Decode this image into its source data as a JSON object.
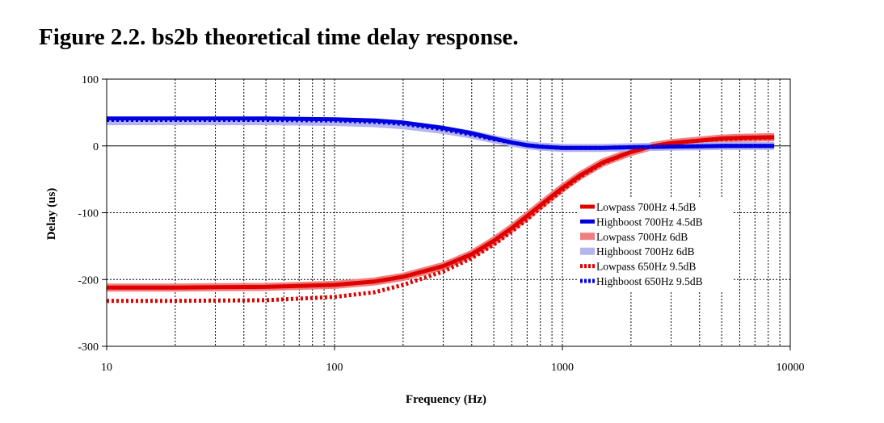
{
  "figure": {
    "title": "Figure 2.2. bs2b theoretical time delay response."
  },
  "chart_data": {
    "type": "line",
    "title": "",
    "xlabel": "Frequency (Hz)",
    "ylabel": "Delay (us)",
    "xscale": "log",
    "xlim": [
      10,
      10000
    ],
    "ylim": [
      -300,
      100
    ],
    "xticks": [
      10,
      100,
      1000,
      10000
    ],
    "xtick_labels": [
      "10",
      "100",
      "1000",
      "10000"
    ],
    "yticks": [
      -300,
      -200,
      -100,
      0,
      100
    ],
    "ytick_labels": [
      "-300",
      "-200",
      "-100",
      "0",
      "100"
    ],
    "grid": true,
    "legend_position": "right-center",
    "series": [
      {
        "name": "Lowpass 700Hz 6dB",
        "color": "#f08080",
        "style": "thick-solid",
        "x": [
          10,
          20,
          50,
          100,
          150,
          200,
          300,
          400,
          500,
          600,
          700,
          800,
          1000,
          1200,
          1500,
          2000,
          2500,
          3000,
          4000,
          5000,
          6000,
          8000,
          8500
        ],
        "y": [
          -212,
          -212,
          -211,
          -208,
          -203,
          -196,
          -180,
          -162,
          -142,
          -123,
          -105,
          -89,
          -63,
          -44,
          -25,
          -9,
          0,
          4,
          8,
          11,
          12,
          13,
          13
        ]
      },
      {
        "name": "Highboost 700Hz 6dB",
        "color": "#b4b4f0",
        "style": "thick-solid",
        "x": [
          10,
          20,
          50,
          100,
          150,
          200,
          300,
          400,
          500,
          600,
          700,
          800,
          1000,
          1200,
          1500,
          2000,
          3000,
          5000,
          8500
        ],
        "y": [
          37,
          37,
          37,
          36,
          34,
          31,
          24,
          17,
          10,
          5,
          1,
          -1,
          -3,
          -3,
          -3,
          -2,
          -1,
          0,
          0
        ]
      },
      {
        "name": "Lowpass 700Hz 4.5dB",
        "color": "#e00000",
        "style": "solid",
        "x": [
          10,
          20,
          50,
          100,
          150,
          200,
          300,
          400,
          500,
          600,
          700,
          800,
          1000,
          1200,
          1500,
          2000,
          2500,
          3000,
          4000,
          5000,
          6000,
          8000,
          8500
        ],
        "y": [
          -212,
          -212,
          -211,
          -208,
          -203,
          -196,
          -180,
          -162,
          -142,
          -123,
          -105,
          -89,
          -63,
          -44,
          -25,
          -9,
          0,
          4,
          8,
          11,
          12,
          13,
          13
        ]
      },
      {
        "name": "Highboost 700Hz 4.5dB",
        "color": "#0000e0",
        "style": "solid",
        "x": [
          10,
          20,
          50,
          100,
          150,
          200,
          300,
          400,
          500,
          600,
          700,
          800,
          1000,
          1200,
          1500,
          2000,
          3000,
          5000,
          8500
        ],
        "y": [
          41,
          41,
          41,
          40,
          38,
          35,
          27,
          19,
          11,
          5,
          1,
          -1,
          -3,
          -3,
          -3,
          -2,
          -1,
          0,
          0
        ]
      },
      {
        "name": "Lowpass 650Hz 9.5dB",
        "color": "#e00000",
        "style": "dotted",
        "x": [
          10,
          20,
          50,
          100,
          150,
          200,
          300,
          400,
          500,
          600,
          700,
          800,
          1000,
          1200,
          1500,
          2000,
          2500,
          3000,
          4000,
          5000,
          6000,
          8000,
          8500
        ],
        "y": [
          -232,
          -232,
          -231,
          -226,
          -219,
          -208,
          -188,
          -168,
          -148,
          -128,
          -110,
          -93,
          -66,
          -46,
          -26,
          -9,
          0,
          4,
          8,
          10,
          11,
          12,
          12
        ]
      },
      {
        "name": "Highboost 650Hz 9.5dB",
        "color": "#0000e0",
        "style": "dotted",
        "x": [
          10,
          20,
          50,
          100,
          150,
          200,
          300,
          400,
          500,
          600,
          700,
          800,
          1000,
          1200,
          1500,
          2000,
          3000,
          5000,
          8500
        ],
        "y": [
          39,
          39,
          39,
          38,
          36,
          33,
          25,
          17,
          10,
          5,
          1,
          -1,
          -3,
          -3,
          -3,
          -2,
          -1,
          0,
          0
        ]
      }
    ],
    "legend_order": [
      "Lowpass 700Hz 4.5dB",
      "Highboost 700Hz 4.5dB",
      "Lowpass 700Hz 6dB",
      "Highboost 700Hz 6dB",
      "Lowpass 650Hz 9.5dB",
      "Highboost 650Hz 9.5dB"
    ]
  }
}
